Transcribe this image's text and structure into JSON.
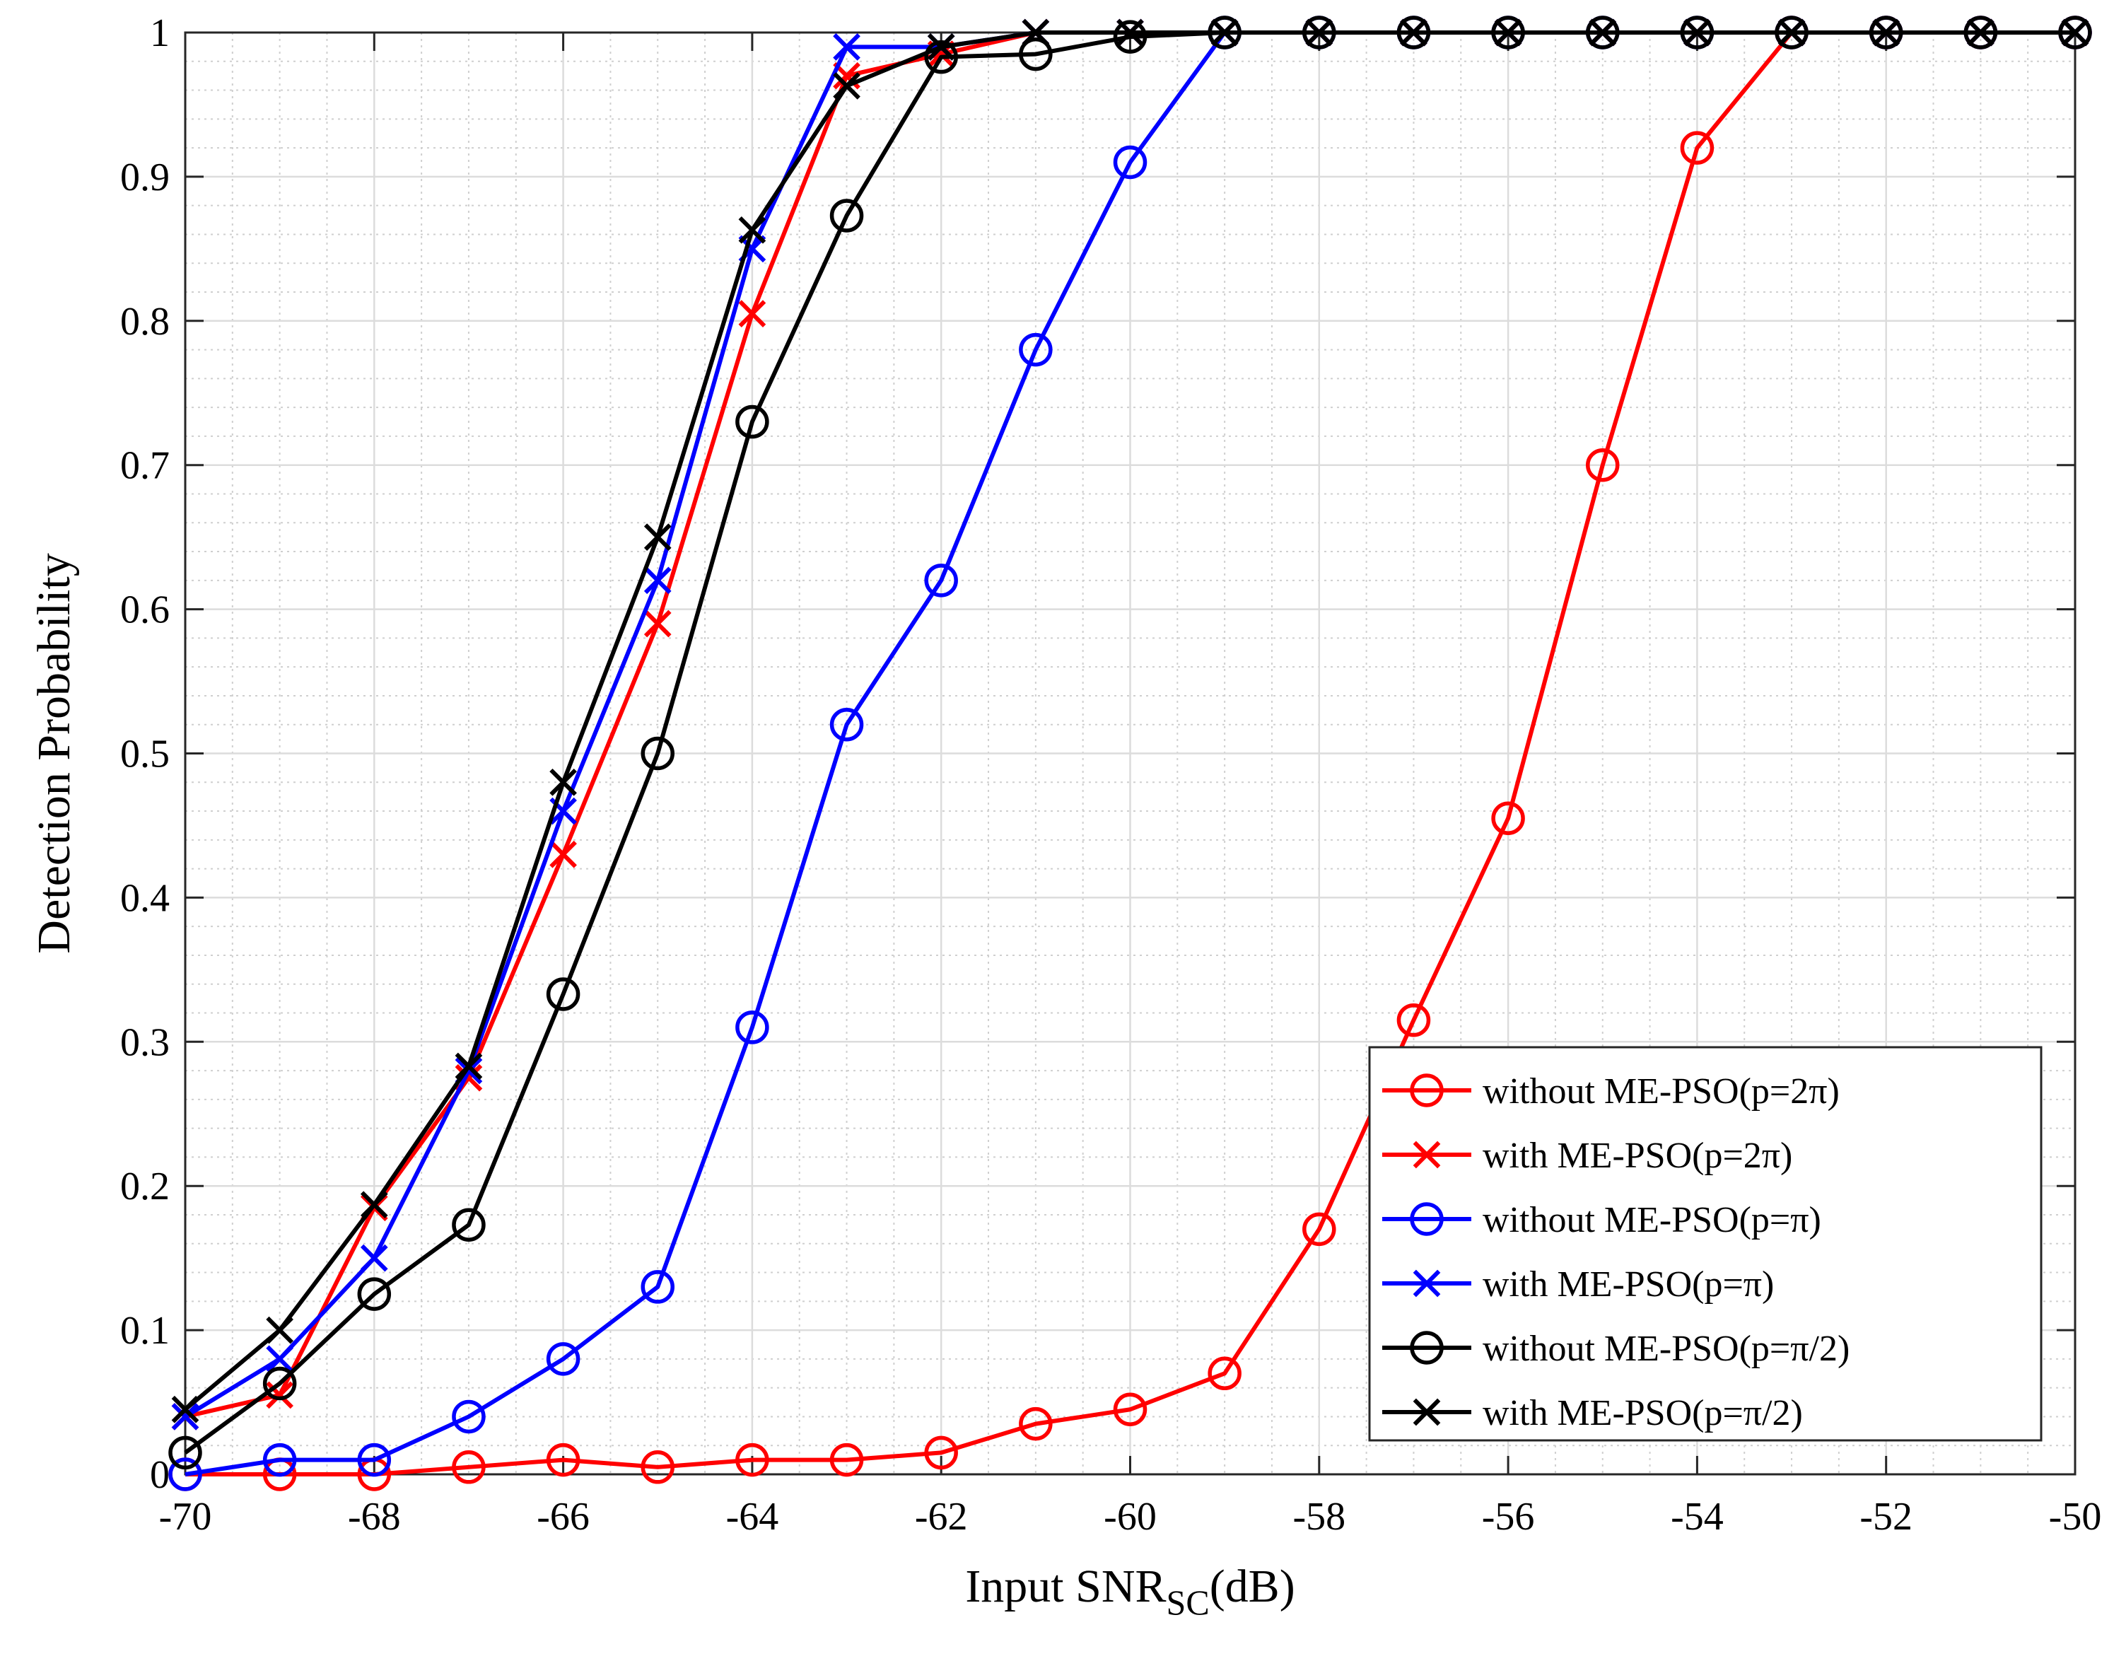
{
  "chart_data": {
    "type": "line",
    "xlabel_main": "Input SNR",
    "xlabel_sub": "SC",
    "xlabel_unit": "(dB)",
    "ylabel": "Detection Probability",
    "xlim": [
      -70,
      -50
    ],
    "ylim": [
      0,
      1
    ],
    "x_ticks": [
      -70,
      -68,
      -66,
      -64,
      -62,
      -60,
      -58,
      -56,
      -54,
      -52,
      -50
    ],
    "x_tick_labels": [
      "-70",
      "-68",
      "-66",
      "-64",
      "-62",
      "-60",
      "-58",
      "-56",
      "-54",
      "-52",
      "-50"
    ],
    "y_ticks": [
      0,
      0.1,
      0.2,
      0.3,
      0.4,
      0.5,
      0.6,
      0.7,
      0.8,
      0.9,
      1
    ],
    "y_tick_labels": [
      "0",
      "0.1",
      "0.2",
      "0.3",
      "0.4",
      "0.5",
      "0.6",
      "0.7",
      "0.8",
      "0.9",
      "1"
    ],
    "grid": true,
    "minor_grid": true,
    "legend_position": "bottom-right",
    "x": [
      -70,
      -69,
      -68,
      -67,
      -66,
      -65,
      -64,
      -63,
      -62,
      -61,
      -60,
      -59,
      -58,
      -57,
      -56,
      -55,
      -54,
      -53,
      -52,
      -51,
      -50
    ],
    "series": [
      {
        "name": "without ME-PSO(p=2π)",
        "color": "#ff0000",
        "marker": "circle",
        "values": [
          0,
          0,
          0,
          0.005,
          0.01,
          0.005,
          0.01,
          0.01,
          0.015,
          0.035,
          0.045,
          0.07,
          0.17,
          0.315,
          0.455,
          0.7,
          0.92,
          1,
          1,
          1,
          1
        ]
      },
      {
        "name": "with ME-PSO(p=2π)",
        "color": "#ff0000",
        "marker": "x",
        "values": [
          0.04,
          0.055,
          0.185,
          0.275,
          0.43,
          0.59,
          0.805,
          0.97,
          0.985,
          1,
          1,
          1,
          1,
          1,
          1,
          1,
          1,
          1,
          1,
          1,
          1
        ]
      },
      {
        "name": "without ME-PSO(p=π)",
        "color": "#0000ff",
        "marker": "circle",
        "values": [
          0,
          0.01,
          0.01,
          0.04,
          0.08,
          0.13,
          0.31,
          0.52,
          0.62,
          0.78,
          0.91,
          1,
          1,
          1,
          1,
          1,
          1,
          1,
          1,
          1,
          1
        ]
      },
      {
        "name": "with ME-PSO(p=π)",
        "color": "#0000ff",
        "marker": "x",
        "values": [
          0.04,
          0.08,
          0.15,
          0.28,
          0.46,
          0.62,
          0.85,
          0.99,
          0.99,
          1,
          1,
          1,
          1,
          1,
          1,
          1,
          1,
          1,
          1,
          1,
          1
        ]
      },
      {
        "name": "without ME-PSO(p=π/2)",
        "color": "#000000",
        "marker": "circle",
        "values": [
          0.015,
          0.063,
          0.125,
          0.173,
          0.333,
          0.5,
          0.73,
          0.873,
          0.983,
          0.985,
          0.997,
          1,
          1,
          1,
          1,
          1,
          1,
          1,
          1,
          1,
          1
        ]
      },
      {
        "name": "with ME-PSO(p=π/2)",
        "color": "#000000",
        "marker": "x",
        "values": [
          0.045,
          0.1,
          0.187,
          0.283,
          0.48,
          0.65,
          0.863,
          0.963,
          0.99,
          1,
          1,
          1,
          1,
          1,
          1,
          1,
          1,
          1,
          1,
          1,
          1
        ]
      }
    ]
  }
}
